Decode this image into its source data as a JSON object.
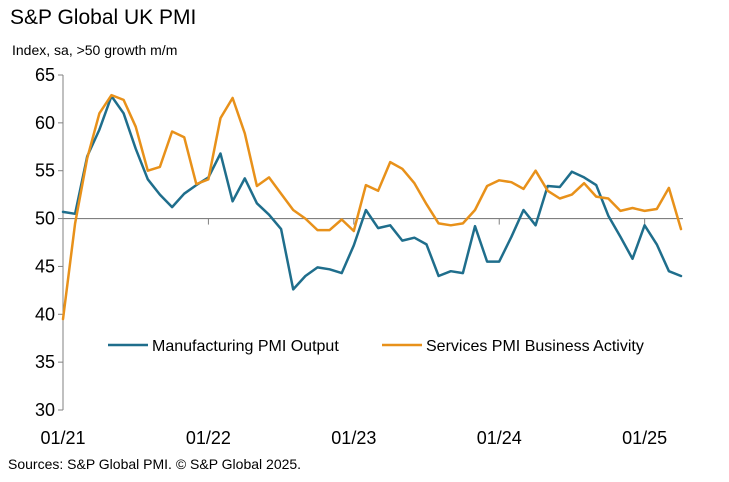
{
  "title": "S&P Global UK PMI",
  "subtitle": "Index, sa, >50 growth m/m",
  "source": "Sources: S&P Global PMI. © S&P Global 2025.",
  "chart_data": {
    "type": "line",
    "ylim": [
      30,
      65
    ],
    "yticks": [
      "30",
      "35",
      "40",
      "45",
      "50",
      "55",
      "60",
      "65"
    ],
    "xticks": [
      {
        "label": "01/21",
        "index": 0
      },
      {
        "label": "01/22",
        "index": 12
      },
      {
        "label": "01/23",
        "index": 24
      },
      {
        "label": "01/24",
        "index": 36
      },
      {
        "label": "01/25",
        "index": 48
      }
    ],
    "reference_line": 50,
    "legend_position": "lower-right",
    "series": [
      {
        "name": "Manufacturing PMI Output",
        "color": "#1f6e8c",
        "values": [
          50.7,
          50.5,
          56.5,
          59.3,
          62.8,
          61.0,
          57.3,
          54.1,
          52.5,
          51.2,
          52.6,
          53.5,
          54.3,
          56.8,
          51.8,
          54.2,
          51.6,
          50.4,
          48.9,
          42.6,
          44.0,
          44.9,
          44.7,
          44.3,
          47.2,
          50.9,
          49.0,
          49.3,
          47.7,
          48.0,
          47.3,
          44.0,
          44.5,
          44.3,
          49.2,
          45.5,
          45.5,
          48.1,
          50.9,
          49.3,
          53.4,
          53.3,
          54.9,
          54.3,
          53.5,
          50.3,
          48.1,
          45.8,
          49.3,
          47.3,
          44.5,
          44.0
        ]
      },
      {
        "name": "Services PMI Business Activity",
        "color": "#e8911a",
        "values": [
          39.5,
          49.5,
          56.3,
          61.0,
          62.9,
          62.4,
          59.6,
          55.0,
          55.4,
          59.1,
          58.5,
          53.6,
          54.1,
          60.5,
          62.6,
          58.9,
          53.4,
          54.3,
          52.6,
          50.9,
          50.0,
          48.8,
          48.8,
          49.9,
          48.7,
          53.5,
          52.9,
          55.9,
          55.2,
          53.7,
          51.5,
          49.5,
          49.3,
          49.5,
          50.9,
          53.4,
          54.0,
          53.8,
          53.1,
          55.0,
          52.9,
          52.1,
          52.5,
          53.7,
          52.3,
          52.1,
          50.8,
          51.1,
          50.8,
          51.0,
          53.2,
          48.9
        ]
      }
    ]
  }
}
